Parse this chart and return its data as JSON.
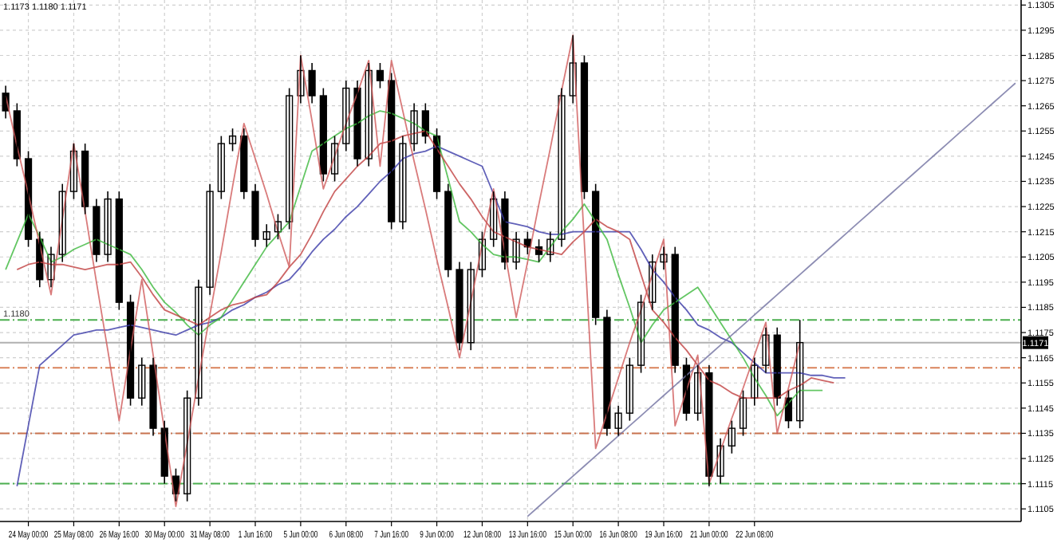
{
  "chart_data": {
    "type": "candlestick",
    "annotations": [
      "1.1173 1.1180 1.1171"
    ],
    "categories": [
      null,
      null,
      "24 May 00:00",
      null,
      null,
      null,
      "25 May 08:00",
      null,
      null,
      null,
      "26 May 16:00",
      null,
      null,
      null,
      "30 May 00:00",
      null,
      null,
      null,
      "31 May 08:00",
      null,
      null,
      null,
      "1 Jun 16:00",
      null,
      null,
      null,
      "5 Jun 00:00",
      null,
      null,
      null,
      "6 Jun 08:00",
      null,
      null,
      null,
      "7 Jun 16:00",
      null,
      null,
      null,
      "9 Jun 00:00",
      null,
      null,
      null,
      "12 Jun 08:00",
      null,
      null,
      null,
      "13 Jun 16:00",
      null,
      null,
      null,
      "15 Jun 00:00",
      null,
      null,
      null,
      "16 Jun 08:00",
      null,
      null,
      null,
      "19 Jun 16:00",
      null,
      null,
      null,
      "21 Jun 00:00",
      null,
      null,
      null,
      "22 Jun 08:00",
      null,
      null,
      null,
      null,
      null,
      null,
      null,
      null,
      null,
      null,
      null,
      null,
      null,
      null,
      null,
      null,
      null,
      null,
      null,
      null,
      null,
      null,
      null
    ],
    "ohlc": [
      [
        1.127,
        1.1273,
        1.126,
        1.1263
      ],
      [
        1.1263,
        1.1266,
        1.1241,
        1.1244
      ],
      [
        1.1244,
        1.1247,
        1.1209,
        1.1212
      ],
      [
        1.1212,
        1.1215,
        1.1193,
        1.1196
      ],
      [
        1.1196,
        1.1209,
        1.1193,
        1.1206
      ],
      [
        1.1206,
        1.1234,
        1.1203,
        1.1231
      ],
      [
        1.1231,
        1.125,
        1.1228,
        1.1247
      ],
      [
        1.1247,
        1.125,
        1.1222,
        1.1225
      ],
      [
        1.1225,
        1.1228,
        1.1203,
        1.1206
      ],
      [
        1.1206,
        1.1231,
        1.1203,
        1.1228
      ],
      [
        1.1228,
        1.1231,
        1.1184,
        1.1187
      ],
      [
        1.1187,
        1.119,
        1.1146,
        1.1149
      ],
      [
        1.1149,
        1.1165,
        1.1146,
        1.1162
      ],
      [
        1.1162,
        1.1165,
        1.1134,
        1.1137
      ],
      [
        1.1137,
        1.114,
        1.1115,
        1.1118
      ],
      [
        1.1118,
        1.1121,
        1.1108,
        1.1111
      ],
      [
        1.1111,
        1.1152,
        1.1108,
        1.1149
      ],
      [
        1.1149,
        1.1196,
        1.1146,
        1.1193
      ],
      [
        1.1193,
        1.1234,
        1.119,
        1.1231
      ],
      [
        1.1231,
        1.1253,
        1.1228,
        1.125
      ],
      [
        1.125,
        1.1256,
        1.1247,
        1.1253
      ],
      [
        1.1253,
        1.1256,
        1.1228,
        1.1231
      ],
      [
        1.1231,
        1.1234,
        1.1209,
        1.1212
      ],
      [
        1.1212,
        1.1218,
        1.1209,
        1.1215
      ],
      [
        1.1215,
        1.1222,
        1.1212,
        1.1219
      ],
      [
        1.1219,
        1.1272,
        1.1216,
        1.1269
      ],
      [
        1.1269,
        1.1285,
        1.1266,
        1.1279
      ],
      [
        1.1279,
        1.1282,
        1.1266,
        1.1269
      ],
      [
        1.1269,
        1.1272,
        1.1235,
        1.1238
      ],
      [
        1.1238,
        1.1253,
        1.1235,
        1.125
      ],
      [
        1.125,
        1.1275,
        1.1247,
        1.1272
      ],
      [
        1.1272,
        1.1275,
        1.1241,
        1.1244
      ],
      [
        1.1244,
        1.1282,
        1.1241,
        1.1279
      ],
      [
        1.1279,
        1.1282,
        1.1272,
        1.1275
      ],
      [
        1.1275,
        1.1278,
        1.1216,
        1.1219
      ],
      [
        1.1219,
        1.1253,
        1.1216,
        1.125
      ],
      [
        1.125,
        1.1266,
        1.1247,
        1.1263
      ],
      [
        1.1263,
        1.1266,
        1.125,
        1.1253
      ],
      [
        1.1253,
        1.1256,
        1.1228,
        1.1231
      ],
      [
        1.1231,
        1.1234,
        1.1197,
        1.12
      ],
      [
        1.12,
        1.1203,
        1.1168,
        1.1171
      ],
      [
        1.1171,
        1.1203,
        1.1168,
        1.12
      ],
      [
        1.12,
        1.1215,
        1.1197,
        1.1212
      ],
      [
        1.1212,
        1.1231,
        1.1209,
        1.1228
      ],
      [
        1.1228,
        1.1231,
        1.12,
        1.1203
      ],
      [
        1.1203,
        1.1215,
        1.12,
        1.1212
      ],
      [
        1.1212,
        1.1215,
        1.1206,
        1.1209
      ],
      [
        1.1209,
        1.1212,
        1.1203,
        1.1206
      ],
      [
        1.1206,
        1.1215,
        1.1203,
        1.1212
      ],
      [
        1.1212,
        1.1272,
        1.1209,
        1.1269
      ],
      [
        1.1269,
        1.1293,
        1.1266,
        1.1282
      ],
      [
        1.1282,
        1.1285,
        1.1228,
        1.1231
      ],
      [
        1.1231,
        1.1234,
        1.1178,
        1.1181
      ],
      [
        1.1181,
        1.1184,
        1.1134,
        1.1137
      ],
      [
        1.1137,
        1.1146,
        1.1134,
        1.1143
      ],
      [
        1.1143,
        1.1165,
        1.114,
        1.1162
      ],
      [
        1.1162,
        1.119,
        1.1159,
        1.1187
      ],
      [
        1.1187,
        1.1206,
        1.1184,
        1.1203
      ],
      [
        1.1203,
        1.1209,
        1.12,
        1.1206
      ],
      [
        1.1206,
        1.1209,
        1.1159,
        1.1162
      ],
      [
        1.1162,
        1.1165,
        1.114,
        1.1143
      ],
      [
        1.1143,
        1.1162,
        1.114,
        1.1159
      ],
      [
        1.1159,
        1.1162,
        1.1114,
        1.1118
      ],
      [
        1.1118,
        1.1133,
        1.1115,
        1.113
      ],
      [
        1.113,
        1.114,
        1.1127,
        1.1137
      ],
      [
        1.1137,
        1.1152,
        1.1134,
        1.1149
      ],
      [
        1.1149,
        1.1165,
        1.1146,
        1.1162
      ],
      [
        1.1162,
        1.1177,
        1.1159,
        1.1174
      ],
      [
        1.1174,
        1.1177,
        1.1146,
        1.1149
      ],
      [
        1.1149,
        1.1152,
        1.1137,
        1.114
      ],
      [
        1.114,
        1.118,
        1.1137,
        1.1171
      ],
      null,
      null,
      null,
      null,
      null,
      null,
      null,
      null,
      null,
      null,
      null,
      null,
      null,
      null,
      null,
      null,
      null,
      null,
      null
    ],
    "series": [
      {
        "type": "line",
        "color": "#3a3aa8",
        "values": [
          null,
          1.1114,
          1.1138,
          1.1162,
          1.1166,
          1.117,
          1.1174,
          1.1175,
          1.1176,
          1.1176,
          1.1177,
          1.1178,
          1.1177,
          1.1176,
          1.1175,
          1.1174,
          1.1176,
          1.1178,
          1.1179,
          1.1181,
          1.1184,
          1.1186,
          1.1189,
          1.1191,
          1.1194,
          1.1196,
          1.1201,
          1.1207,
          1.1212,
          1.1216,
          1.1221,
          1.1225,
          1.123,
          1.1235,
          1.1239,
          1.1244,
          1.1246,
          1.1247,
          1.1249,
          1.1247,
          1.1245,
          1.1243,
          1.1241,
          1.123,
          1.1219,
          1.1218,
          1.1217,
          1.1215,
          1.1214,
          1.1214,
          1.1215,
          1.1215,
          1.1215,
          1.1215,
          1.1215,
          1.1215,
          1.1208,
          1.12,
          1.1195,
          1.1189,
          1.1184,
          1.1178,
          1.1176,
          1.1173,
          1.1171,
          1.1167,
          1.1163,
          1.1159,
          1.1159,
          1.1159,
          1.1159,
          1.1158,
          1.1158,
          1.1157,
          1.1157,
          null,
          null,
          null,
          null,
          null,
          null,
          null,
          null,
          null,
          null,
          null,
          null,
          null,
          null,
          null
        ]
      },
      {
        "type": "line",
        "color": "#3cb83c",
        "values": [
          1.12,
          1.1211,
          1.1222,
          1.1213,
          1.1203,
          1.1205,
          1.1208,
          1.121,
          1.1212,
          1.121,
          1.1208,
          1.1206,
          1.12,
          1.1193,
          1.1187,
          1.1183,
          1.1178,
          1.1174,
          1.1178,
          1.1181,
          1.1188,
          1.1195,
          1.1202,
          1.1209,
          1.1214,
          1.1219,
          1.1233,
          1.1247,
          1.125,
          1.1253,
          1.1256,
          1.1258,
          1.1261,
          1.1263,
          1.1262,
          1.126,
          1.1258,
          1.1255,
          1.1253,
          1.1236,
          1.1219,
          1.1215,
          1.121,
          1.1206,
          1.1205,
          1.1205,
          1.1204,
          1.1203,
          1.1209,
          1.1215,
          1.122,
          1.1226,
          1.1219,
          1.1212,
          1.1198,
          1.1185,
          1.1171,
          1.1178,
          1.1184,
          1.1187,
          1.119,
          1.1193,
          1.1186,
          1.1179,
          1.1172,
          1.1165,
          1.1157,
          1.115,
          1.1142,
          1.1147,
          1.1152,
          1.1152,
          1.1152,
          null,
          null,
          null,
          null,
          null,
          null,
          null,
          null,
          null,
          null,
          null,
          null,
          null,
          null,
          null,
          null,
          null
        ]
      },
      {
        "type": "line",
        "color": "#c04040",
        "values": [
          null,
          1.12,
          1.1202,
          1.1203,
          1.1202,
          1.1202,
          1.1201,
          1.12,
          1.1201,
          1.1202,
          1.1202,
          1.1203,
          1.1197,
          1.119,
          1.1184,
          1.1182,
          1.118,
          1.1178,
          1.1181,
          1.1184,
          1.1186,
          1.1187,
          1.1189,
          1.119,
          1.1195,
          1.1201,
          1.1206,
          1.1214,
          1.1223,
          1.1231,
          1.1236,
          1.1241,
          1.1245,
          1.125,
          1.1251,
          1.1253,
          1.1254,
          1.1255,
          1.1248,
          1.1241,
          1.1234,
          1.1228,
          1.1221,
          1.1215,
          1.1213,
          1.1211,
          1.1209,
          1.1208,
          1.1207,
          1.1206,
          1.1211,
          1.1215,
          1.122,
          1.1217,
          1.1215,
          1.1212,
          1.1198,
          1.1184,
          1.1179,
          1.1173,
          1.1168,
          1.1162,
          1.1156,
          1.1154,
          1.1151,
          1.1149,
          1.1149,
          1.1149,
          1.1149,
          1.1152,
          1.1154,
          1.1157,
          1.1156,
          1.1155,
          null,
          null,
          null,
          null,
          null,
          null,
          null,
          null,
          null,
          null,
          null,
          null,
          null,
          null,
          null,
          null
        ]
      },
      {
        "type": "line",
        "color": "#d05a5a",
        "values": [
          1.1269,
          1.1249,
          1.123,
          1.121,
          1.119,
          1.122,
          1.125,
          1.1223,
          1.1195,
          1.1168,
          1.114,
          1.1168,
          1.1196,
          1.1166,
          1.1136,
          1.1106,
          1.1131,
          1.1157,
          1.1182,
          1.1207,
          1.1233,
          1.1258,
          1.1244,
          1.123,
          1.1215,
          1.1201,
          1.1285,
          1.1259,
          1.1232,
          1.1245,
          1.1258,
          1.127,
          1.1283,
          1.1241,
          1.1283,
          1.1263,
          1.1243,
          1.1224,
          1.1204,
          1.1185,
          1.1165,
          1.1187,
          1.121,
          1.1232,
          1.1207,
          1.1181,
          1.1203,
          1.1226,
          1.1248,
          1.1271,
          1.1293,
          1.1211,
          1.1129,
          1.1143,
          1.1157,
          1.1171,
          1.1184,
          1.1198,
          1.1212,
          1.1138,
          1.1152,
          1.1166,
          1.1115,
          1.1128,
          1.1141,
          1.1153,
          1.1166,
          1.1179,
          1.1135,
          1.1153,
          1.1171,
          null,
          null,
          null,
          null,
          null,
          null,
          null,
          null,
          null,
          null,
          null,
          null,
          null,
          null,
          null,
          null,
          null,
          null,
          null
        ]
      },
      {
        "type": "line",
        "color": "#7070a0",
        "values": [
          null,
          null,
          null,
          null,
          null,
          null,
          null,
          null,
          null,
          null,
          null,
          null,
          null,
          null,
          null,
          null,
          null,
          null,
          null,
          null,
          null,
          null,
          null,
          null,
          null,
          null,
          null,
          null,
          null,
          null,
          null,
          null,
          null,
          null,
          null,
          null,
          null,
          null,
          null,
          null,
          null,
          null,
          null,
          null,
          null,
          null,
          1.1102,
          1.1106,
          1.111,
          1.1114,
          1.1118,
          1.1122,
          1.1126,
          1.113,
          1.1134,
          1.1138,
          1.1142,
          1.1146,
          1.115,
          1.1154,
          1.1158,
          1.1162,
          1.1166,
          1.117,
          1.1174,
          1.1178,
          1.1182,
          1.1186,
          1.119,
          1.1194,
          1.1198,
          1.1202,
          1.1206,
          1.121,
          1.1214,
          1.1218,
          1.1222,
          1.1226,
          1.123,
          1.1234,
          1.1238,
          1.1242,
          1.1246,
          1.125,
          1.1254,
          1.1258,
          1.1262,
          1.1266,
          1.127,
          1.1274
        ]
      }
    ],
    "ylim": [
      1.11,
      1.1307
    ],
    "yticks": [
      1.1105,
      1.1115,
      1.1125,
      1.1135,
      1.1145,
      1.1155,
      1.1165,
      1.1175,
      1.1185,
      1.1195,
      1.1205,
      1.1215,
      1.1225,
      1.1235,
      1.1245,
      1.1255,
      1.1265,
      1.1275,
      1.1285,
      1.1295,
      1.1305
    ],
    "ref_lines": [
      {
        "axis": "y",
        "value": 1.118,
        "label": "1.1180",
        "color": "#4caf50",
        "line_style": "dashed"
      },
      {
        "axis": "y",
        "value": 1.1115,
        "color": "#4caf50",
        "line_style": "dashed"
      },
      {
        "axis": "y",
        "value": 1.1161,
        "color": "#d9825b",
        "line_style": "dashed"
      },
      {
        "axis": "y",
        "value": 1.1135,
        "color": "#c8734f",
        "line_style": "dashed"
      },
      {
        "axis": "y",
        "value": 1.1171,
        "label": "1.1171",
        "color": "#b0b0b0",
        "line_style": "solid"
      }
    ],
    "grid": true,
    "marker": "none",
    "line_style": "solid"
  }
}
